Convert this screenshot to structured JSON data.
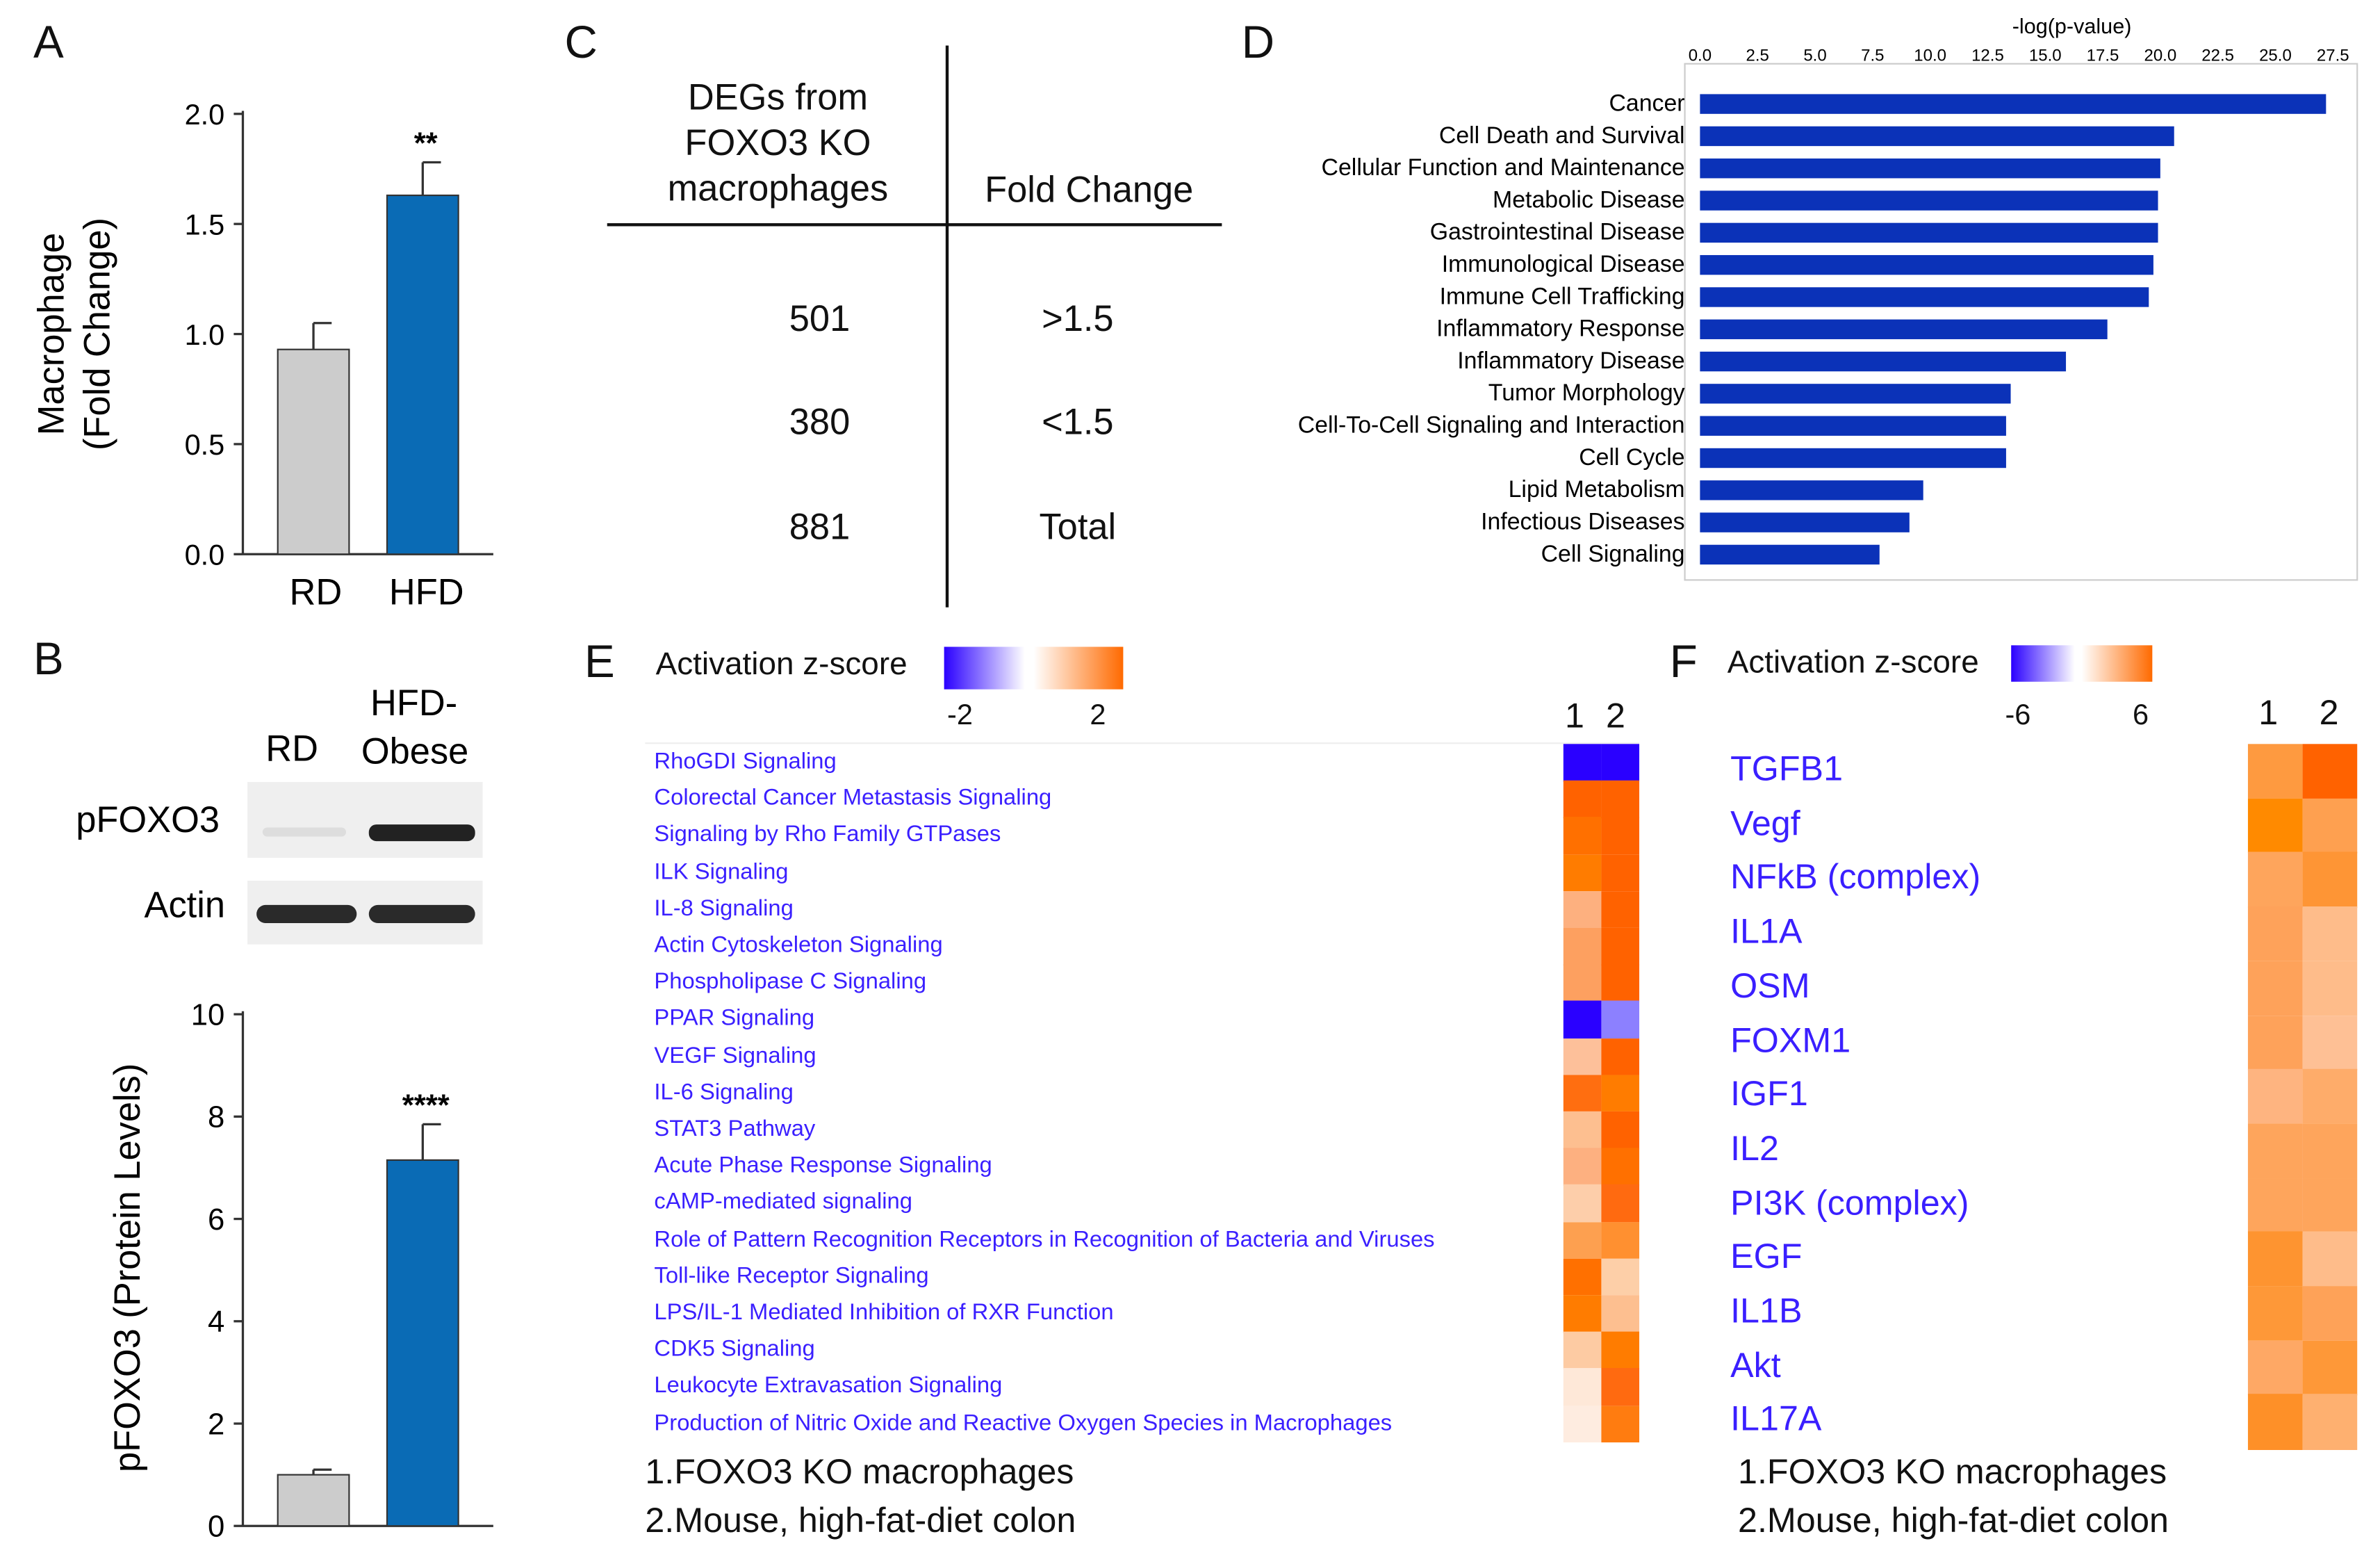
{
  "panel_labels": {
    "a": "A",
    "b": "B",
    "c": "C",
    "d": "D",
    "e": "E",
    "f": "F"
  },
  "chart_data": [
    {
      "id": "A",
      "type": "bar",
      "categories": [
        "RD",
        "HFD"
      ],
      "values": [
        0.93,
        1.63
      ],
      "errors": [
        0.12,
        0.15
      ],
      "colors": [
        "#cccccc",
        "#0a6bb5"
      ],
      "annotations": [
        "",
        "**"
      ],
      "ylabel_lines": [
        "Macrophage",
        "(Fold Change)"
      ],
      "ylim": [
        0,
        2.0
      ],
      "yticks": [
        "0.0",
        "0.5",
        "1.0",
        "1.5",
        "2.0"
      ]
    },
    {
      "id": "B",
      "type": "bar",
      "categories": [
        "RD",
        "HFD"
      ],
      "values": [
        1.0,
        7.15
      ],
      "errors": [
        0.1,
        0.7
      ],
      "colors": [
        "#cccccc",
        "#0a6bb5"
      ],
      "annotations": [
        "",
        "****"
      ],
      "ylabel": "pFOXO3 (Protein Levels)",
      "ylim": [
        0,
        10
      ],
      "yticks": [
        "0",
        "2",
        "4",
        "6",
        "8",
        "10"
      ]
    },
    {
      "id": "D",
      "type": "bar",
      "orientation": "horizontal",
      "title": "-log(p-value)",
      "categories": [
        "Cancer",
        "Cell Death and Survival",
        "Cellular Function and Maintenance",
        "Metabolic Disease",
        "Gastrointestinal Disease",
        "Immunological Disease",
        "Immune Cell Trafficking",
        "Inflammatory Response",
        "Inflammatory Disease",
        "Tumor Morphology",
        "Cell-To-Cell Signaling and Interaction",
        "Cell Cycle",
        "Lipid Metabolism",
        "Infectious Diseases",
        "Cell Signaling"
      ],
      "values": [
        27.2,
        20.6,
        20.0,
        19.9,
        19.9,
        19.7,
        19.5,
        17.7,
        15.9,
        13.5,
        13.3,
        13.3,
        9.7,
        9.1,
        7.8
      ],
      "color": "#0b32b8",
      "xlim": [
        0,
        27.5
      ],
      "xticks": [
        "0.0",
        "2.5",
        "5.0",
        "7.5",
        "10.0",
        "12.5",
        "15.0",
        "17.5",
        "20.0",
        "22.5",
        "25.0",
        "27.5"
      ]
    },
    {
      "id": "E",
      "type": "heatmap",
      "legend_title": "Activation z-score",
      "legend_min": "-2",
      "legend_max": "2",
      "columns": [
        "1",
        "2"
      ],
      "rows": [
        "RhoGDI Signaling",
        "Colorectal Cancer Metastasis Signaling",
        "Signaling by Rho Family GTPases",
        "ILK Signaling",
        "IL-8 Signaling",
        "Actin Cytoskeleton Signaling",
        "Phospholipase C Signaling",
        "PPAR Signaling",
        "VEGF Signaling",
        "IL-6 Signaling",
        "STAT3 Pathway",
        "Acute Phase Response Signaling",
        "cAMP-mediated signaling",
        "Role of Pattern Recognition Receptors in Recognition of Bacteria and Viruses",
        "Toll-like Receptor Signaling",
        "LPS/IL-1 Mediated Inhibition of RXR Function",
        "CDK5 Signaling",
        "Leukocyte Extravasation Signaling",
        "Production of Nitric Oxide and Reactive Oxygen Species in Macrophages"
      ],
      "cell_colors": [
        [
          "#2a00ff",
          "#2a00ff"
        ],
        [
          "#ff6200",
          "#ff6200"
        ],
        [
          "#ff7000",
          "#ff6200"
        ],
        [
          "#ff7c00",
          "#ff6200"
        ],
        [
          "#fdb07f",
          "#ff6200"
        ],
        [
          "#fda060",
          "#ff6200"
        ],
        [
          "#fda060",
          "#ff6200"
        ],
        [
          "#2a00ff",
          "#8c80ff"
        ],
        [
          "#fdc09a",
          "#ff6200"
        ],
        [
          "#ff6e10",
          "#ff7c00"
        ],
        [
          "#fdbf90",
          "#ff6200"
        ],
        [
          "#fdb080",
          "#ff7000"
        ],
        [
          "#fdceaa",
          "#ff6a10"
        ],
        [
          "#fda050",
          "#ff9030"
        ],
        [
          "#ff7000",
          "#fdcfa8"
        ],
        [
          "#ff7c00",
          "#fdbf90"
        ],
        [
          "#fdcba3",
          "#ff7c00"
        ],
        [
          "#fee8d8",
          "#ff6a10"
        ],
        [
          "#feece0",
          "#ff7c10"
        ]
      ],
      "footnotes": [
        "1.FOXO3 KO macrophages",
        "2.Mouse, high-fat-diet colon"
      ]
    },
    {
      "id": "F",
      "type": "heatmap",
      "legend_title": "Activation z-score",
      "legend_min": "-6",
      "legend_max": "6",
      "columns": [
        "1",
        "2"
      ],
      "rows": [
        "TGFB1",
        "Vegf",
        "NFkB (complex)",
        "IL1A",
        "OSM",
        "FOXM1",
        "IGF1",
        "IL2",
        "PI3K (complex)",
        "EGF",
        "IL1B",
        "Akt",
        "IL17A"
      ],
      "cell_colors": [
        [
          "#fe9a40",
          "#ff6200"
        ],
        [
          "#ff8a00",
          "#fea050"
        ],
        [
          "#fea55c",
          "#fe9535"
        ],
        [
          "#fea25a",
          "#febc8a"
        ],
        [
          "#fea25a",
          "#febc8a"
        ],
        [
          "#fea25a",
          "#fec095"
        ],
        [
          "#feb480",
          "#feac6a"
        ],
        [
          "#fea55c",
          "#fea55c"
        ],
        [
          "#fea55c",
          "#fea55c"
        ],
        [
          "#fe9430",
          "#febc8a"
        ],
        [
          "#fe9838",
          "#fea258"
        ],
        [
          "#fea865",
          "#fe9838"
        ],
        [
          "#fe9028",
          "#feb070"
        ]
      ],
      "footnotes": [
        "1.FOXO3 KO macrophages",
        "2.Mouse, high-fat-diet colon"
      ]
    }
  ],
  "western_blot": {
    "lanes": [
      "RD",
      "HFD-\nObese"
    ],
    "lane1": "RD",
    "lane2_line1": "HFD-",
    "lane2_line2": "Obese",
    "bands": [
      "pFOXO3",
      "Actin"
    ]
  },
  "table_c": {
    "header_left_lines": [
      "DEGs from",
      "FOXO3 KO",
      "macrophages"
    ],
    "header_right": "Fold Change",
    "rows": [
      {
        "count": "501",
        "fold": ">1.5"
      },
      {
        "count": "380",
        "fold": "<1.5"
      },
      {
        "count": "881",
        "fold": "Total"
      }
    ]
  }
}
